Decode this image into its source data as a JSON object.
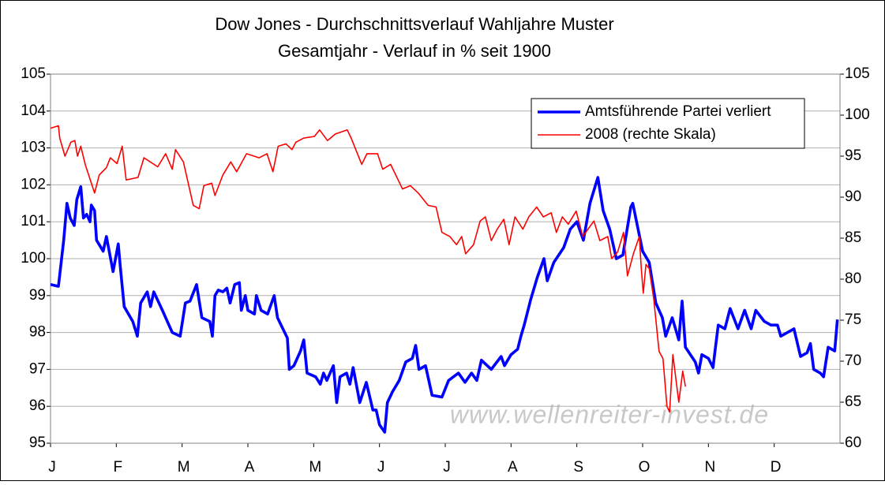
{
  "chart_data": {
    "type": "line",
    "title": "Dow Jones - Durchschnittsverlauf Wahljahre Muster",
    "subtitle": "Gesamtjahr - Verlauf in % seit 1900",
    "annotation": "www.wellenreiter-invest.de",
    "xlim": [
      0,
      12
    ],
    "xticks": [
      {
        "value": 0,
        "label": "J"
      },
      {
        "value": 1,
        "label": "F"
      },
      {
        "value": 2,
        "label": "M"
      },
      {
        "value": 3,
        "label": "A"
      },
      {
        "value": 4,
        "label": "M"
      },
      {
        "value": 5,
        "label": "J"
      },
      {
        "value": 6,
        "label": "J"
      },
      {
        "value": 7,
        "label": "A"
      },
      {
        "value": 8,
        "label": "S"
      },
      {
        "value": 9,
        "label": "O"
      },
      {
        "value": 10,
        "label": "N"
      },
      {
        "value": 11,
        "label": "D"
      }
    ],
    "ylim": [
      95,
      105
    ],
    "yticks": [
      95,
      96,
      97,
      98,
      99,
      100,
      101,
      102,
      103,
      104,
      105
    ],
    "y2lim": [
      60,
      105
    ],
    "y2ticks": [
      60,
      65,
      70,
      75,
      80,
      85,
      90,
      95,
      100,
      105
    ],
    "grid": true,
    "legend": "upper right",
    "series": [
      {
        "name": "Amtsführende Partei verliert",
        "color": "#0000ff",
        "axis": "y",
        "x": [
          0,
          0.12,
          0.2,
          0.25,
          0.3,
          0.36,
          0.4,
          0.46,
          0.5,
          0.55,
          0.6,
          0.62,
          0.67,
          0.7,
          0.8,
          0.85,
          0.95,
          1.03,
          1.06,
          1.12,
          1.25,
          1.32,
          1.37,
          1.47,
          1.52,
          1.57,
          1.7,
          1.85,
          1.97,
          2.05,
          2.12,
          2.22,
          2.3,
          2.42,
          2.46,
          2.5,
          2.55,
          2.62,
          2.68,
          2.73,
          2.8,
          2.87,
          2.9,
          2.96,
          3.0,
          3.1,
          3.13,
          3.2,
          3.3,
          3.4,
          3.45,
          3.6,
          3.63,
          3.7,
          3.8,
          3.85,
          3.9,
          4.03,
          4.1,
          4.15,
          4.2,
          4.3,
          4.35,
          4.4,
          4.5,
          4.55,
          4.6,
          4.7,
          4.8,
          4.9,
          4.95,
          5.0,
          5.08,
          5.12,
          5.2,
          5.3,
          5.4,
          5.5,
          5.55,
          5.6,
          5.7,
          5.8,
          5.95,
          6.05,
          6.2,
          6.3,
          6.4,
          6.48,
          6.55,
          6.7,
          6.85,
          6.9,
          7.0,
          7.1,
          7.15,
          7.2,
          7.3,
          7.4,
          7.5,
          7.55,
          7.65,
          7.8,
          7.9,
          8.0,
          8.1,
          8.2,
          8.32,
          8.4,
          8.5,
          8.6,
          8.7,
          8.82,
          8.85,
          9.0,
          9.1,
          9.2,
          9.3,
          9.35,
          9.45,
          9.55,
          9.6,
          9.65,
          9.8,
          9.85,
          9.9,
          10.0,
          10.07,
          10.1,
          10.15,
          10.25,
          10.33,
          10.45,
          10.55,
          10.65,
          10.72,
          10.85,
          10.95,
          11.05,
          11.1,
          11.3,
          11.4,
          11.5,
          11.55,
          11.6,
          11.7,
          11.75,
          11.82,
          11.92,
          11.96
        ],
        "values": [
          99.3,
          99.25,
          100.5,
          101.5,
          101.1,
          100.9,
          101.6,
          101.95,
          101.1,
          101.2,
          101.0,
          101.45,
          101.3,
          100.5,
          100.2,
          100.6,
          99.65,
          100.4,
          99.8,
          98.7,
          98.3,
          97.9,
          98.8,
          99.1,
          98.7,
          99.1,
          98.6,
          98.0,
          97.9,
          98.8,
          98.85,
          99.3,
          98.4,
          98.3,
          97.9,
          99.0,
          99.15,
          99.1,
          99.2,
          98.8,
          99.3,
          99.35,
          98.6,
          99.0,
          98.6,
          98.5,
          99.0,
          98.6,
          98.5,
          99.0,
          98.4,
          97.85,
          97.0,
          97.1,
          97.5,
          97.8,
          96.9,
          96.8,
          96.6,
          96.9,
          96.7,
          97.1,
          96.1,
          96.8,
          96.9,
          96.6,
          97.05,
          96.1,
          96.65,
          95.9,
          95.9,
          95.5,
          95.3,
          96.1,
          96.4,
          96.7,
          97.2,
          97.3,
          97.65,
          97.0,
          97.1,
          96.3,
          96.25,
          96.7,
          96.9,
          96.65,
          96.9,
          96.7,
          97.25,
          97.0,
          97.35,
          97.1,
          97.4,
          97.55,
          97.9,
          98.2,
          98.9,
          99.5,
          100.0,
          99.4,
          99.9,
          100.3,
          100.8,
          101.0,
          100.5,
          101.5,
          102.2,
          101.3,
          100.8,
          100.0,
          100.1,
          101.4,
          101.5,
          100.2,
          99.9,
          98.8,
          98.4,
          97.9,
          98.4,
          97.8,
          98.85,
          97.6,
          97.2,
          96.9,
          97.4,
          97.3,
          97.05,
          97.5,
          98.2,
          98.1,
          98.65,
          98.1,
          98.6,
          98.1,
          98.6,
          98.3,
          98.2,
          98.2,
          97.9,
          98.1,
          97.35,
          97.45,
          97.7,
          97.0,
          96.9,
          96.8,
          97.6,
          97.5,
          98.35
        ]
      },
      {
        "name": "2008 (rechte Skala)",
        "color": "#ff0000",
        "axis": "y2",
        "x": [
          0,
          0.12,
          0.14,
          0.22,
          0.31,
          0.37,
          0.41,
          0.46,
          0.53,
          0.67,
          0.74,
          0.85,
          0.91,
          1.01,
          1.09,
          1.15,
          1.33,
          1.42,
          1.63,
          1.75,
          1.85,
          1.9,
          2.02,
          2.17,
          2.26,
          2.33,
          2.45,
          2.5,
          2.62,
          2.74,
          2.83,
          2.98,
          3.17,
          3.29,
          3.38,
          3.46,
          3.58,
          3.67,
          3.73,
          3.85,
          4.01,
          4.09,
          4.21,
          4.33,
          4.51,
          4.57,
          4.73,
          4.81,
          4.97,
          5.05,
          5.17,
          5.35,
          5.47,
          5.59,
          5.74,
          5.86,
          5.95,
          6.07,
          6.17,
          6.25,
          6.31,
          6.43,
          6.53,
          6.61,
          6.7,
          6.79,
          6.89,
          6.97,
          7.06,
          7.18,
          7.27,
          7.39,
          7.49,
          7.61,
          7.69,
          7.78,
          7.87,
          7.99,
          8.09,
          8.17,
          8.26,
          8.35,
          8.47,
          8.53,
          8.62,
          8.71,
          8.77,
          8.86,
          8.95,
          8.98,
          9.01,
          9.05,
          9.1,
          9.17,
          9.25,
          9.31,
          9.37,
          9.41,
          9.46,
          9.55,
          9.61,
          9.65
        ],
        "values": [
          98.4,
          98.7,
          97.2,
          95.0,
          96.7,
          96.9,
          95.0,
          96.2,
          93.9,
          90.5,
          92.7,
          93.6,
          94.8,
          94.1,
          96.2,
          92.1,
          92.4,
          94.8,
          93.7,
          95.3,
          93.4,
          95.8,
          94.3,
          89.0,
          88.6,
          91.4,
          91.7,
          90.2,
          92.7,
          94.3,
          93.1,
          95.3,
          94.8,
          95.3,
          93.1,
          96.2,
          96.5,
          95.8,
          96.7,
          97.2,
          97.4,
          98.2,
          96.9,
          97.7,
          98.2,
          97.2,
          94.0,
          95.3,
          95.3,
          93.4,
          94.0,
          91.0,
          91.4,
          90.5,
          89.0,
          88.8,
          85.7,
          85.2,
          84.2,
          85.2,
          83.1,
          84.2,
          87.1,
          87.6,
          84.7,
          86.1,
          87.3,
          84.2,
          87.6,
          86.1,
          87.6,
          88.8,
          87.6,
          88.1,
          85.7,
          87.6,
          86.7,
          88.3,
          85.2,
          86.1,
          87.1,
          84.7,
          85.2,
          82.5,
          83.3,
          85.7,
          80.4,
          83.1,
          85.2,
          81.3,
          78.3,
          81.8,
          81.3,
          77.5,
          71.2,
          70.3,
          64.5,
          63.8,
          70.8,
          65.0,
          68.8,
          66.9
        ]
      }
    ]
  }
}
